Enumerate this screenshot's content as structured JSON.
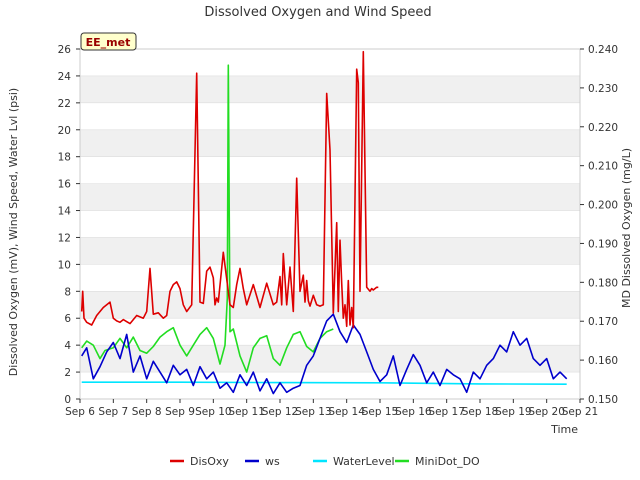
{
  "chart_data": {
    "type": "line",
    "title": "Dissolved Oxygen and Wind Speed",
    "xlabel": "Time",
    "ylabel_left": "Dissolved Oxygen (mV), Wind Speed, Water Lvl (psi)",
    "ylabel_right": "MD Dissolved Oxygen (mg/L)",
    "badge": "EE_met",
    "x_ticks": [
      "Sep 6",
      "Sep 7",
      "Sep 8",
      "Sep 9",
      "Sep 10",
      "Sep 11",
      "Sep 12",
      "Sep 13",
      "Sep 14",
      "Sep 15",
      "Sep 16",
      "Sep 17",
      "Sep 18",
      "Sep 19",
      "Sep 20",
      "Sep 21"
    ],
    "x_range_days": [
      6,
      21
    ],
    "ylim_left": [
      0,
      26
    ],
    "y_ticks_left": [
      "0",
      "2",
      "4",
      "6",
      "8",
      "10",
      "12",
      "14",
      "16",
      "18",
      "20",
      "22",
      "24",
      "26"
    ],
    "ylim_right": [
      0.15,
      0.24
    ],
    "y_ticks_right": [
      "0.150",
      "0.160",
      "0.170",
      "0.180",
      "0.190",
      "0.200",
      "0.210",
      "0.220",
      "0.230",
      "0.240"
    ],
    "grid": "horizontal bands",
    "legend_position": "bottom",
    "series": [
      {
        "name": "DisOxy",
        "color": "#dd0000",
        "axis": "left",
        "x": [
          6.05,
          6.08,
          6.12,
          6.2,
          6.35,
          6.5,
          6.7,
          6.9,
          7.0,
          7.1,
          7.2,
          7.3,
          7.5,
          7.7,
          7.9,
          8.0,
          8.1,
          8.2,
          8.35,
          8.5,
          8.6,
          8.7,
          8.8,
          8.9,
          9.0,
          9.1,
          9.2,
          9.35,
          9.5,
          9.6,
          9.7,
          9.8,
          9.9,
          10.0,
          10.05,
          10.1,
          10.15,
          10.3,
          10.5,
          10.6,
          10.7,
          10.8,
          10.9,
          11.0,
          11.2,
          11.4,
          11.6,
          11.8,
          11.9,
          12.0,
          12.05,
          12.1,
          12.2,
          12.3,
          12.4,
          12.5,
          12.6,
          12.7,
          12.75,
          12.8,
          12.85,
          12.9,
          13.0,
          13.1,
          13.2,
          13.3,
          13.4,
          13.5,
          13.6,
          13.7,
          13.75,
          13.8,
          13.85,
          13.9,
          13.95,
          14.0,
          14.05,
          14.1,
          14.15,
          14.2,
          14.3,
          14.35,
          14.4,
          14.5,
          14.6,
          14.7,
          14.75,
          14.8,
          14.9,
          14.95
        ],
        "y": [
          6.5,
          8.0,
          6.0,
          5.7,
          5.5,
          6.2,
          6.8,
          7.2,
          6.0,
          5.8,
          5.7,
          5.9,
          5.6,
          6.2,
          6.0,
          6.5,
          9.7,
          6.3,
          6.4,
          6.0,
          6.2,
          8.0,
          8.5,
          8.7,
          8.2,
          7.0,
          6.5,
          7.0,
          24.2,
          7.2,
          7.1,
          9.5,
          9.8,
          9.0,
          7.0,
          7.5,
          7.2,
          10.9,
          7.0,
          6.8,
          8.5,
          9.7,
          8.2,
          7.0,
          8.5,
          6.8,
          8.6,
          7.0,
          7.2,
          9.1,
          7.0,
          10.8,
          7.0,
          9.8,
          6.5,
          16.4,
          8.0,
          9.2,
          7.2,
          8.8,
          7.3,
          6.9,
          7.7,
          7.0,
          6.9,
          7.0,
          22.7,
          18.5,
          6.4,
          13.1,
          6.5,
          11.8,
          8.6,
          6.0,
          7.0,
          5.4,
          8.8,
          5.5,
          6.8,
          5.3,
          24.5,
          23.5,
          8.0,
          25.8,
          8.3,
          8.0,
          8.2,
          8.1,
          8.3,
          8.3
        ],
        "notes": "x values are day-of-September"
      },
      {
        "name": "ws",
        "color": "#0000cc",
        "axis": "left",
        "x": [
          6.05,
          6.2,
          6.4,
          6.6,
          6.8,
          7.0,
          7.2,
          7.4,
          7.6,
          7.8,
          8.0,
          8.2,
          8.4,
          8.6,
          8.8,
          9.0,
          9.2,
          9.4,
          9.6,
          9.8,
          10.0,
          10.2,
          10.4,
          10.6,
          10.8,
          11.0,
          11.2,
          11.4,
          11.6,
          11.8,
          12.0,
          12.2,
          12.4,
          12.6,
          12.8,
          13.0,
          13.2,
          13.4,
          13.6,
          13.8,
          14.0,
          14.2,
          14.4,
          14.6,
          14.8,
          15.0,
          15.2,
          15.4,
          15.6,
          15.8,
          16.0,
          16.2,
          16.4,
          16.6,
          16.8,
          17.0,
          17.2,
          17.4,
          17.6,
          17.8,
          18.0,
          18.2,
          18.4,
          18.6,
          18.8,
          19.0,
          19.2,
          19.4,
          19.6,
          19.8,
          20.0,
          20.2,
          20.4,
          20.6
        ],
        "y": [
          3.2,
          3.8,
          1.5,
          2.4,
          3.5,
          4.2,
          3.0,
          4.8,
          2.0,
          3.2,
          1.5,
          2.8,
          2.0,
          1.2,
          2.5,
          1.8,
          2.2,
          1.0,
          2.4,
          1.5,
          2.0,
          0.8,
          1.2,
          0.5,
          1.8,
          1.0,
          2.0,
          0.6,
          1.5,
          0.4,
          1.2,
          0.5,
          0.8,
          1.0,
          2.5,
          3.2,
          4.5,
          5.8,
          6.3,
          5.0,
          4.2,
          5.5,
          4.8,
          3.5,
          2.2,
          1.3,
          1.8,
          3.2,
          1.0,
          2.2,
          3.3,
          2.5,
          1.2,
          2.0,
          1.0,
          2.2,
          1.8,
          1.5,
          0.5,
          2.0,
          1.5,
          2.5,
          3.0,
          4.0,
          3.5,
          5.0,
          4.0,
          4.5,
          3.0,
          2.5,
          3.0,
          1.5,
          2.0,
          1.5
        ]
      },
      {
        "name": "WaterLevel",
        "color": "#00e5ff",
        "axis": "left",
        "x": [
          6.05,
          9.0,
          12.0,
          15.0,
          18.0,
          20.6
        ],
        "y": [
          1.25,
          1.25,
          1.22,
          1.2,
          1.12,
          1.1
        ]
      },
      {
        "name": "MiniDot_DO",
        "color": "#22dd22",
        "axis": "left",
        "x": [
          6.05,
          6.2,
          6.4,
          6.6,
          6.75,
          7.0,
          7.2,
          7.4,
          7.6,
          7.8,
          8.0,
          8.2,
          8.4,
          8.6,
          8.8,
          9.0,
          9.2,
          9.4,
          9.6,
          9.8,
          10.0,
          10.2,
          10.35,
          10.42,
          10.45,
          10.5,
          10.6,
          10.8,
          11.0,
          11.2,
          11.4,
          11.6,
          11.8,
          12.0,
          12.2,
          12.4,
          12.6,
          12.8,
          13.0,
          13.2,
          13.4,
          13.6
        ],
        "y": [
          3.8,
          4.3,
          4.0,
          3.0,
          3.6,
          3.8,
          4.5,
          3.8,
          4.6,
          3.6,
          3.4,
          3.9,
          4.6,
          5.0,
          5.3,
          4.0,
          3.2,
          4.0,
          4.8,
          5.3,
          4.5,
          2.6,
          4.0,
          7.5,
          24.8,
          5.0,
          5.2,
          3.2,
          2.0,
          3.8,
          4.5,
          4.7,
          3.0,
          2.5,
          3.8,
          4.8,
          5.0,
          3.9,
          3.5,
          4.5,
          5.0,
          5.2
        ]
      }
    ]
  }
}
